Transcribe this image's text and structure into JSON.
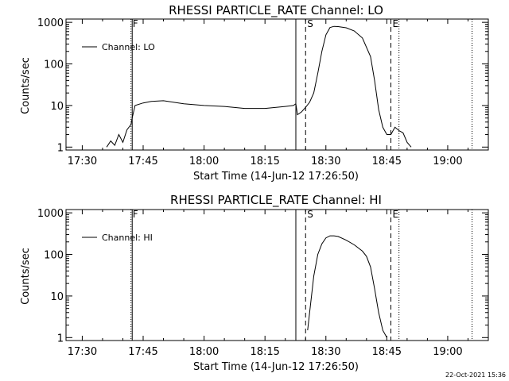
{
  "timestamp": "22-Oct-2021 15:36",
  "chart_data": [
    {
      "type": "line",
      "title": "RHESSI PARTICLE_RATE Channel: LO",
      "xlabel": "Start Time (14-Jun-12 17:26:50)",
      "ylabel": "Counts/sec",
      "yscale": "log",
      "ylim": [
        0.85,
        1200
      ],
      "xlim_minutes_from_1726": [
        0,
        104
      ],
      "x_tick_labels": [
        "17:30",
        "17:45",
        "18:00",
        "18:15",
        "18:30",
        "18:45",
        "19:00"
      ],
      "y_tick_labels": [
        "1",
        "10",
        "100",
        "1000"
      ],
      "legend": {
        "entries": [
          "Channel: LO"
        ],
        "placement": "top-left"
      },
      "markers": [
        {
          "label": "F",
          "time": "17:42",
          "style": "dotted"
        },
        {
          "label": "",
          "time": "17:42.3",
          "style": "solid"
        },
        {
          "label": "",
          "time": "18:22.6",
          "style": "solid"
        },
        {
          "label": "S",
          "time": "18:25",
          "style": "dashed"
        },
        {
          "label": "E",
          "time": "18:46",
          "style": "dashed"
        },
        {
          "label": "",
          "time": "18:48",
          "style": "dotted"
        },
        {
          "label": "",
          "time": "19:06",
          "style": "dotted"
        }
      ],
      "series": [
        {
          "name": "Channel: LO",
          "x": [
            "17:36",
            "17:37",
            "17:38",
            "17:39",
            "17:40",
            "17:41",
            "17:42",
            "17:42.3",
            "17:43",
            "17:45",
            "17:47",
            "17:50",
            "17:55",
            "18:00",
            "18:05",
            "18:10",
            "18:15",
            "18:20",
            "18:22",
            "18:22.6",
            "18:23",
            "18:24",
            "18:25",
            "18:26",
            "18:27",
            "18:28",
            "18:29",
            "18:30",
            "18:31",
            "18:32",
            "18:33",
            "18:35",
            "18:37",
            "18:39",
            "18:41",
            "18:42",
            "18:43",
            "18:44",
            "18:45",
            "18:46",
            "18:47",
            "18:48",
            "18:49",
            "18:50",
            "18:51"
          ],
          "y": [
            1,
            1.4,
            1.1,
            2,
            1.3,
            2.6,
            3.5,
            5,
            10,
            11.5,
            12.5,
            13,
            11,
            10,
            9.5,
            8.5,
            8.5,
            9.5,
            10,
            11,
            6,
            7,
            9,
            12,
            20,
            60,
            200,
            500,
            750,
            800,
            790,
            740,
            620,
            420,
            150,
            40,
            8,
            3,
            2,
            2,
            3,
            2.5,
            2.2,
            1.3,
            1
          ]
        }
      ]
    },
    {
      "type": "line",
      "title": "RHESSI PARTICLE_RATE Channel: HI",
      "xlabel": "Start Time (14-Jun-12 17:26:50)",
      "ylabel": "Counts/sec",
      "yscale": "log",
      "ylim": [
        0.85,
        1200
      ],
      "xlim_minutes_from_1726": [
        0,
        104
      ],
      "x_tick_labels": [
        "17:30",
        "17:45",
        "18:00",
        "18:15",
        "18:30",
        "18:45",
        "19:00"
      ],
      "y_tick_labels": [
        "1",
        "10",
        "100",
        "1000"
      ],
      "legend": {
        "entries": [
          "Channel: HI"
        ],
        "placement": "top-left"
      },
      "markers": [
        {
          "label": "F",
          "time": "17:42",
          "style": "dotted"
        },
        {
          "label": "",
          "time": "17:42.3",
          "style": "solid"
        },
        {
          "label": "",
          "time": "18:22.6",
          "style": "solid"
        },
        {
          "label": "S",
          "time": "18:25",
          "style": "dashed"
        },
        {
          "label": "E",
          "time": "18:46",
          "style": "dashed"
        },
        {
          "label": "",
          "time": "18:48",
          "style": "dotted"
        },
        {
          "label": "",
          "time": "19:06",
          "style": "dotted"
        }
      ],
      "series": [
        {
          "name": "Channel: HI",
          "x": [
            "18:25.5",
            "18:26",
            "18:27",
            "18:28",
            "18:29",
            "18:30",
            "18:31",
            "18:32",
            "18:33",
            "18:35",
            "18:37",
            "18:39",
            "18:40",
            "18:41",
            "18:42",
            "18:43",
            "18:44",
            "18:45"
          ],
          "y": [
            1.5,
            4,
            30,
            100,
            180,
            250,
            280,
            280,
            270,
            220,
            170,
            120,
            90,
            50,
            15,
            4,
            1.5,
            1
          ]
        }
      ]
    }
  ]
}
